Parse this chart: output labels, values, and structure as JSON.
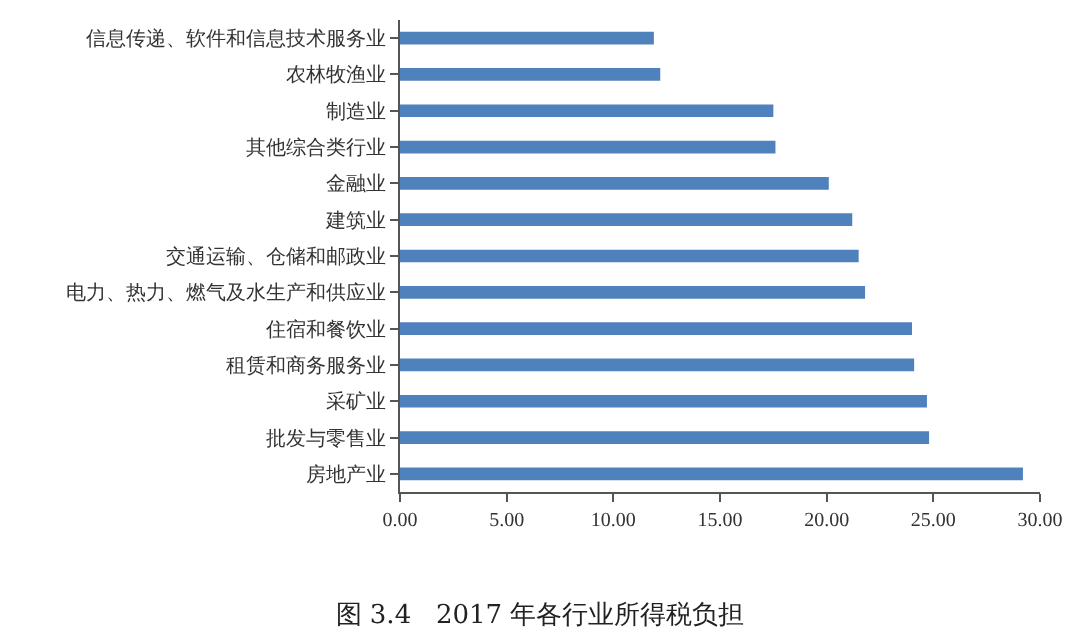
{
  "chart_data": {
    "type": "bar",
    "orientation": "horizontal",
    "title": "图 3.4   2017 年各行业所得税负担",
    "categories": [
      "信息传递、软件和信息技术服务业",
      "农林牧渔业",
      "制造业",
      "其他综合类行业",
      "金融业",
      "建筑业",
      "交通运输、仓储和邮政业",
      "电力、热力、燃气及水生产和供应业",
      "住宿和餐饮业",
      "租赁和商务服务业",
      "采矿业",
      "批发与零售业",
      "房地产业"
    ],
    "values": [
      11.9,
      12.2,
      17.5,
      17.6,
      20.1,
      21.2,
      21.5,
      21.8,
      24.0,
      24.1,
      24.7,
      24.8,
      29.2
    ],
    "color": "#4f81bd",
    "xlim": [
      0,
      30
    ],
    "xticks": [
      {
        "value": 0,
        "label": "0.00"
      },
      {
        "value": 5,
        "label": "5.00"
      },
      {
        "value": 10,
        "label": "10.00"
      },
      {
        "value": 15,
        "label": "15.00"
      },
      {
        "value": 20,
        "label": "20.00"
      },
      {
        "value": 25,
        "label": "25.00"
      },
      {
        "value": 30,
        "label": "30.00"
      }
    ],
    "grid": false
  }
}
